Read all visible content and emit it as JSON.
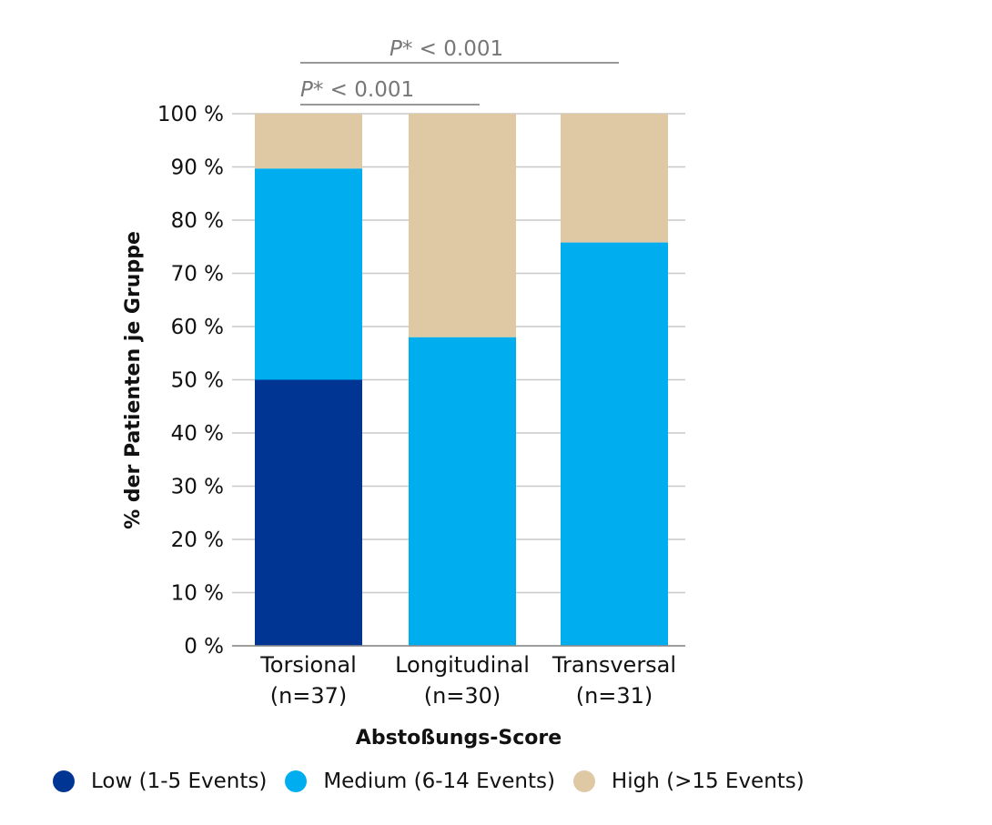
{
  "chart_data": {
    "type": "bar",
    "stacked": true,
    "categories": [
      "Torsional",
      "Longitudinal",
      "Transversal"
    ],
    "category_sublabels": [
      "(n=37)",
      "(n=30)",
      "(n=31)"
    ],
    "series": [
      {
        "name": "Low (1-5 Events)",
        "color": "#003594",
        "values": [
          50,
          0,
          0
        ]
      },
      {
        "name": "Medium (6-14 Events)",
        "color": "#00aeef",
        "values": [
          39.7,
          58,
          75.8
        ]
      },
      {
        "name": "High (>15 Events)",
        "color": "#dfc9a5",
        "values": [
          10.3,
          42,
          24.2
        ]
      }
    ],
    "ylabel": "% der Patienten je Gruppe",
    "xlabel": "Abstoßungs-Score",
    "ylim": [
      0,
      100
    ],
    "yticks": [
      0,
      10,
      20,
      30,
      40,
      50,
      60,
      70,
      80,
      90,
      100
    ],
    "ytick_suffix": " %",
    "grid": true,
    "legend": "bottom",
    "annotations": [
      {
        "p_label": "P*",
        "text": " < 0.001",
        "from": "Torsional",
        "to": "Transversal"
      },
      {
        "p_label": "P*",
        "text": " < 0.001",
        "from": "Torsional",
        "to": "Longitudinal"
      }
    ]
  }
}
